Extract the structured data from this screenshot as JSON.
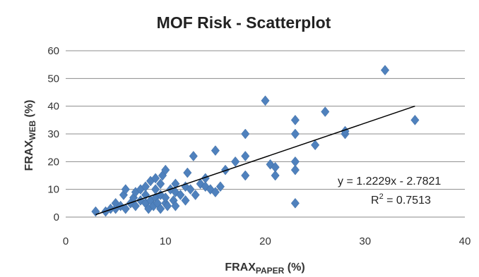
{
  "chart_data": {
    "type": "scatter",
    "title": "MOF Risk - Scatterplot",
    "xlabel": {
      "main": "FRAX",
      "sub": "PAPER",
      "unit": " (%)"
    },
    "ylabel": {
      "main": "FRAX",
      "sub": "WEB",
      "unit": " (%)"
    },
    "xlim": [
      0,
      40
    ],
    "ylim": [
      0,
      60
    ],
    "xticks": [
      0,
      10,
      20,
      30,
      40
    ],
    "yticks": [
      0,
      10,
      20,
      30,
      40,
      50,
      60
    ],
    "grid": "horizontal",
    "legend": "none",
    "marker": "diamond",
    "marker_color": "#4f81bd",
    "trendline_color": "#000000",
    "series": [
      {
        "points": [
          [
            3,
            2
          ],
          [
            4,
            2
          ],
          [
            4.5,
            3
          ],
          [
            5,
            3
          ],
          [
            5,
            5
          ],
          [
            5.5,
            4
          ],
          [
            5.8,
            8
          ],
          [
            6,
            10
          ],
          [
            6,
            3
          ],
          [
            6.5,
            5
          ],
          [
            6.8,
            7
          ],
          [
            7,
            4
          ],
          [
            7,
            9
          ],
          [
            7.5,
            6
          ],
          [
            7.5,
            10
          ],
          [
            8,
            5
          ],
          [
            8,
            8
          ],
          [
            8,
            11
          ],
          [
            8.3,
            3
          ],
          [
            8.5,
            6
          ],
          [
            8.5,
            13
          ],
          [
            8.8,
            4
          ],
          [
            9,
            7
          ],
          [
            9,
            10
          ],
          [
            9,
            14
          ],
          [
            9.2,
            5
          ],
          [
            9.5,
            3
          ],
          [
            9.5,
            8
          ],
          [
            9.5,
            12
          ],
          [
            9.7,
            15
          ],
          [
            10,
            5
          ],
          [
            10,
            7
          ],
          [
            10,
            17
          ],
          [
            10.2,
            4
          ],
          [
            10.5,
            10
          ],
          [
            10.8,
            6
          ],
          [
            11,
            4
          ],
          [
            11,
            9
          ],
          [
            11,
            12
          ],
          [
            11.5,
            8
          ],
          [
            12,
            6
          ],
          [
            12,
            11
          ],
          [
            12.2,
            16
          ],
          [
            12.5,
            10
          ],
          [
            12.8,
            22
          ],
          [
            13,
            8
          ],
          [
            13.5,
            12
          ],
          [
            14,
            14
          ],
          [
            14,
            11
          ],
          [
            14.5,
            10
          ],
          [
            15,
            9
          ],
          [
            15,
            24
          ],
          [
            15.5,
            11
          ],
          [
            16,
            17
          ],
          [
            17,
            20
          ],
          [
            18,
            15
          ],
          [
            18,
            22
          ],
          [
            18,
            30
          ],
          [
            20,
            42
          ],
          [
            20.5,
            19
          ],
          [
            21,
            15
          ],
          [
            21,
            18
          ],
          [
            23,
            5
          ],
          [
            23,
            17
          ],
          [
            23,
            20
          ],
          [
            23,
            30
          ],
          [
            23,
            35
          ],
          [
            25,
            26
          ],
          [
            26,
            38
          ],
          [
            28,
            30
          ],
          [
            28,
            31
          ],
          [
            32,
            53
          ],
          [
            35,
            35
          ]
        ]
      }
    ],
    "trendline": {
      "slope": 1.2229,
      "intercept": -2.7821,
      "x_range": [
        3,
        35
      ],
      "equation_label": "y = 1.2229x - 2.7821",
      "r2_prefix": "R",
      "r2_sup": "2",
      "r2_value": " = 0.7513"
    }
  }
}
